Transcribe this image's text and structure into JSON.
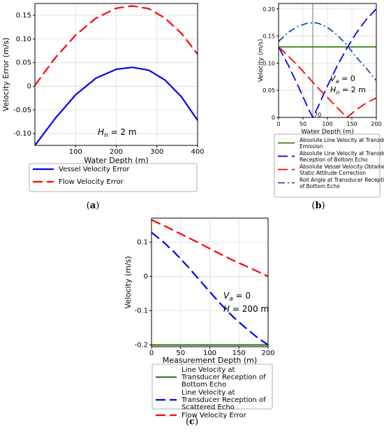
{
  "chart_data": [
    {
      "id": "a",
      "type": "line",
      "panel_label": "(a)",
      "xlabel": "Water Depth (m)",
      "ylabel": "Velocity Error (m/s)",
      "xlim": [
        0,
        400
      ],
      "ylim": [
        -0.125,
        0.175
      ],
      "xticks": [
        100,
        200,
        300,
        400
      ],
      "yticks": [
        -0.1,
        -0.05,
        0,
        0.05,
        0.1,
        0.15
      ],
      "ytick_labels": [
        "-0.10",
        "-0.05",
        "0",
        "0.05",
        "0.10",
        "0.15"
      ],
      "grid": true,
      "annotations": [
        {
          "text": "Hn = 2 m",
          "var": "H",
          "sub": "n",
          "rest": " = 2 m"
        }
      ],
      "series": [
        {
          "name": "Vessel Velocity Error",
          "color": "#0000ee",
          "dash": "solid",
          "x": [
            0,
            50,
            100,
            150,
            200,
            240,
            280,
            320,
            360,
            400
          ],
          "y": [
            -0.125,
            -0.068,
            -0.018,
            0.017,
            0.036,
            0.04,
            0.034,
            0.013,
            -0.022,
            -0.072
          ]
        },
        {
          "name": "Flow Velocity Error",
          "color": "#ff0000",
          "dash": "dashed",
          "x": [
            0,
            50,
            100,
            150,
            200,
            240,
            280,
            320,
            360,
            400
          ],
          "y": [
            0.002,
            0.06,
            0.108,
            0.144,
            0.165,
            0.17,
            0.164,
            0.144,
            0.112,
            0.068
          ]
        }
      ]
    },
    {
      "id": "b",
      "type": "line",
      "panel_label": "(b)",
      "xlabel": "Water Depth (m)",
      "ylabel": "Velocity (m/s)",
      "xlim": [
        0,
        200
      ],
      "ylim": [
        0,
        0.21
      ],
      "xticks": [
        0,
        50,
        100,
        150,
        200
      ],
      "yticks": [
        0,
        0.05,
        0.1,
        0.15,
        0.2
      ],
      "ytick_labels": [
        "0",
        "0.05",
        "0.10",
        "0.15",
        "0.20"
      ],
      "grid": true,
      "vline": {
        "x": 70,
        "label": "70"
      },
      "annotations": [
        {
          "text": "Va = 0",
          "var": "V",
          "sub": "a",
          "rest": " = 0"
        },
        {
          "text": "Hn = 2 m",
          "var": "H",
          "sub": "n",
          "rest": " = 2 m"
        }
      ],
      "series": [
        {
          "name": "Absolute Line Velocity at Transducer Emission",
          "color": "#3a7d1a",
          "dash": "solid",
          "x": [
            0,
            200
          ],
          "y": [
            0.13,
            0.13
          ]
        },
        {
          "name": "Absolute Line Velocity at Transducer Reception of Bottom Echo",
          "color": "#0000ee",
          "dash": "dashed",
          "x": [
            0,
            20,
            40,
            60,
            70,
            80,
            100,
            120,
            140,
            160,
            180,
            200
          ],
          "y": [
            0.13,
            0.096,
            0.058,
            0.018,
            0.0,
            0.018,
            0.058,
            0.095,
            0.128,
            0.157,
            0.181,
            0.2
          ]
        },
        {
          "name": "Absolute Vessel Velocity Obtained by Static Attitude Correction",
          "color": "#ff0000",
          "dash": "dashed",
          "x": [
            0,
            20,
            40,
            60,
            80,
            100,
            120,
            140,
            160,
            180,
            200
          ],
          "y": [
            0.13,
            0.113,
            0.095,
            0.075,
            0.055,
            0.037,
            0.018,
            0.0,
            0.015,
            0.027,
            0.036
          ]
        },
        {
          "name": "Roll Angle at Transducer Reception of Bottom Echo",
          "color": "#1f4ea0",
          "dash": "dashdot",
          "x": [
            0,
            20,
            40,
            60,
            80,
            100,
            120,
            140,
            160,
            180,
            200
          ],
          "y": [
            0.14,
            0.157,
            0.168,
            0.174,
            0.174,
            0.166,
            0.152,
            0.133,
            0.11,
            0.09,
            0.068
          ]
        }
      ]
    },
    {
      "id": "c",
      "type": "line",
      "panel_label": "(c)",
      "xlabel": "Measurement Depth (m)",
      "ylabel": "Velocity (m/s)",
      "xlim": [
        0,
        200
      ],
      "ylim": [
        -0.205,
        0.17
      ],
      "xticks": [
        0,
        50,
        100,
        150,
        200
      ],
      "yticks": [
        -0.2,
        -0.1,
        0,
        0.1
      ],
      "ytick_labels": [
        "-0.2",
        "-0.1",
        "0",
        "0.1"
      ],
      "grid": true,
      "annotations": [
        {
          "text": "Va = 0",
          "var": "V",
          "sub": "a",
          "rest": " = 0"
        },
        {
          "text": "H = 200 m",
          "var": "H",
          "sub": "",
          "rest": " = 200 m"
        }
      ],
      "series": [
        {
          "name": "Line Velocity at Transducer Reception of Bottom Echo",
          "color": "#3a7d1a",
          "dash": "solid",
          "x": [
            0,
            200
          ],
          "y": [
            -0.2,
            -0.2
          ]
        },
        {
          "name": "Line Velocity at Transducer Reception of Scattered Echo",
          "color": "#0000ee",
          "dash": "dashed",
          "x": [
            0,
            20,
            40,
            60,
            80,
            100,
            120,
            140,
            160,
            180,
            200
          ],
          "y": [
            0.128,
            0.101,
            0.069,
            0.033,
            -0.006,
            -0.045,
            -0.083,
            -0.118,
            -0.148,
            -0.176,
            -0.2
          ]
        },
        {
          "name": "Flow Velocity Error",
          "color": "#ff0000",
          "dash": "dashed",
          "x": [
            0,
            25,
            50,
            75,
            100,
            125,
            150,
            175,
            200
          ],
          "y": [
            0.165,
            0.145,
            0.124,
            0.103,
            0.081,
            0.059,
            0.039,
            0.02,
            0.0
          ]
        }
      ]
    }
  ]
}
